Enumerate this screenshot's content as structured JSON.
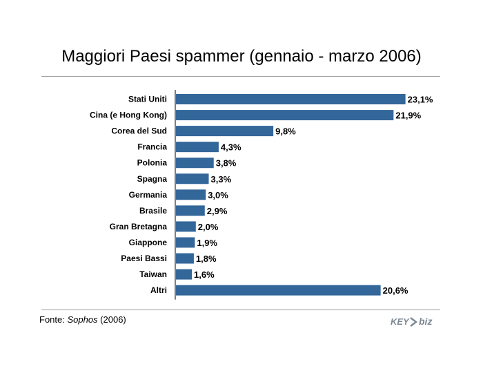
{
  "title": "Maggiori Paesi spammer (gennaio - marzo 2006)",
  "source": {
    "prefix": "Fonte: ",
    "name": "Sophos",
    "suffix": " (2006)"
  },
  "logo": {
    "text_left": "KEY",
    "text_right": "biz",
    "color": "#7d8893"
  },
  "chart_data": {
    "type": "bar",
    "orientation": "horizontal",
    "categories": [
      "Stati Uniti",
      "Cina (e Hong Kong)",
      "Corea del Sud",
      "Francia",
      "Polonia",
      "Spagna",
      "Germania",
      "Brasile",
      "Gran Bretagna",
      "Giappone",
      "Paesi Bassi",
      "Taiwan",
      "Altri"
    ],
    "values": [
      23.1,
      21.9,
      9.8,
      4.3,
      3.8,
      3.3,
      3.0,
      2.9,
      2.0,
      1.9,
      1.8,
      1.6,
      20.6
    ],
    "data_labels": [
      "23,1%",
      "21,9%",
      "9,8%",
      "4,3%",
      "3,8%",
      "3,3%",
      "3,0%",
      "2,9%",
      "2,0%",
      "1,9%",
      "1,8%",
      "1,6%",
      "20,6%"
    ],
    "xlim": [
      0,
      25
    ],
    "grid": false,
    "bar_color": "#336699"
  }
}
